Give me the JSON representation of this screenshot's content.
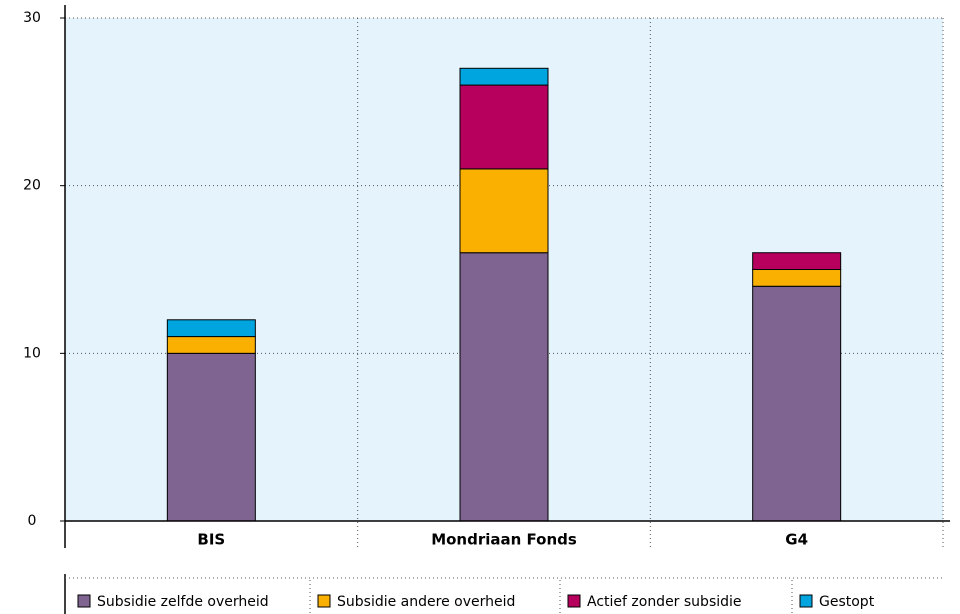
{
  "chart_data": {
    "type": "stacked_bar",
    "categories": [
      "BIS",
      "Mondriaan Fonds",
      "G4"
    ],
    "series": [
      {
        "name": "Subsidie zelfde overheid",
        "color": "#7f6491",
        "values": [
          10,
          16,
          14
        ]
      },
      {
        "name": "Subsidie andere overheid",
        "color": "#f9b000",
        "values": [
          1,
          5,
          1
        ]
      },
      {
        "name": "Actief zonder subsidie",
        "color": "#b7005e",
        "values": [
          0,
          5,
          1
        ]
      },
      {
        "name": "Gestopt",
        "color": "#00a5e0",
        "values": [
          1,
          1,
          0
        ]
      }
    ],
    "ylim": [
      0,
      30
    ],
    "yticks": [
      0,
      10,
      20,
      30
    ],
    "grid": true
  }
}
